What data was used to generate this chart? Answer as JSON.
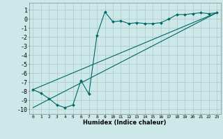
{
  "title": "",
  "xlabel": "Humidex (Indice chaleur)",
  "bg_color": "#cce8e8",
  "grid_color": "#b0cccc",
  "line_color": "#006666",
  "xlim": [
    -0.5,
    23.5
  ],
  "ylim": [
    -10.5,
    1.8
  ],
  "yticks": [
    1,
    0,
    -1,
    -2,
    -3,
    -4,
    -5,
    -6,
    -7,
    -8,
    -9,
    -10
  ],
  "xticks": [
    0,
    1,
    2,
    3,
    4,
    5,
    6,
    7,
    8,
    9,
    10,
    11,
    12,
    13,
    14,
    15,
    16,
    17,
    18,
    19,
    20,
    21,
    22,
    23
  ],
  "series1_x": [
    0,
    1,
    2,
    3,
    4,
    5,
    6,
    7,
    8,
    9,
    10,
    11,
    12,
    13,
    14,
    15,
    16,
    17,
    18,
    19,
    20,
    21,
    22,
    23
  ],
  "series1_y": [
    -7.8,
    -8.2,
    -8.8,
    -9.5,
    -9.8,
    -9.5,
    -6.8,
    -8.3,
    -1.8,
    0.8,
    -0.3,
    -0.2,
    -0.5,
    -0.4,
    -0.5,
    -0.5,
    -0.4,
    0.0,
    0.5,
    0.5,
    0.6,
    0.7,
    0.6,
    0.7
  ],
  "series2_x": [
    0,
    23
  ],
  "series2_y": [
    -7.8,
    0.7
  ],
  "series3_x": [
    0,
    23
  ],
  "series3_y": [
    -9.8,
    0.7
  ]
}
